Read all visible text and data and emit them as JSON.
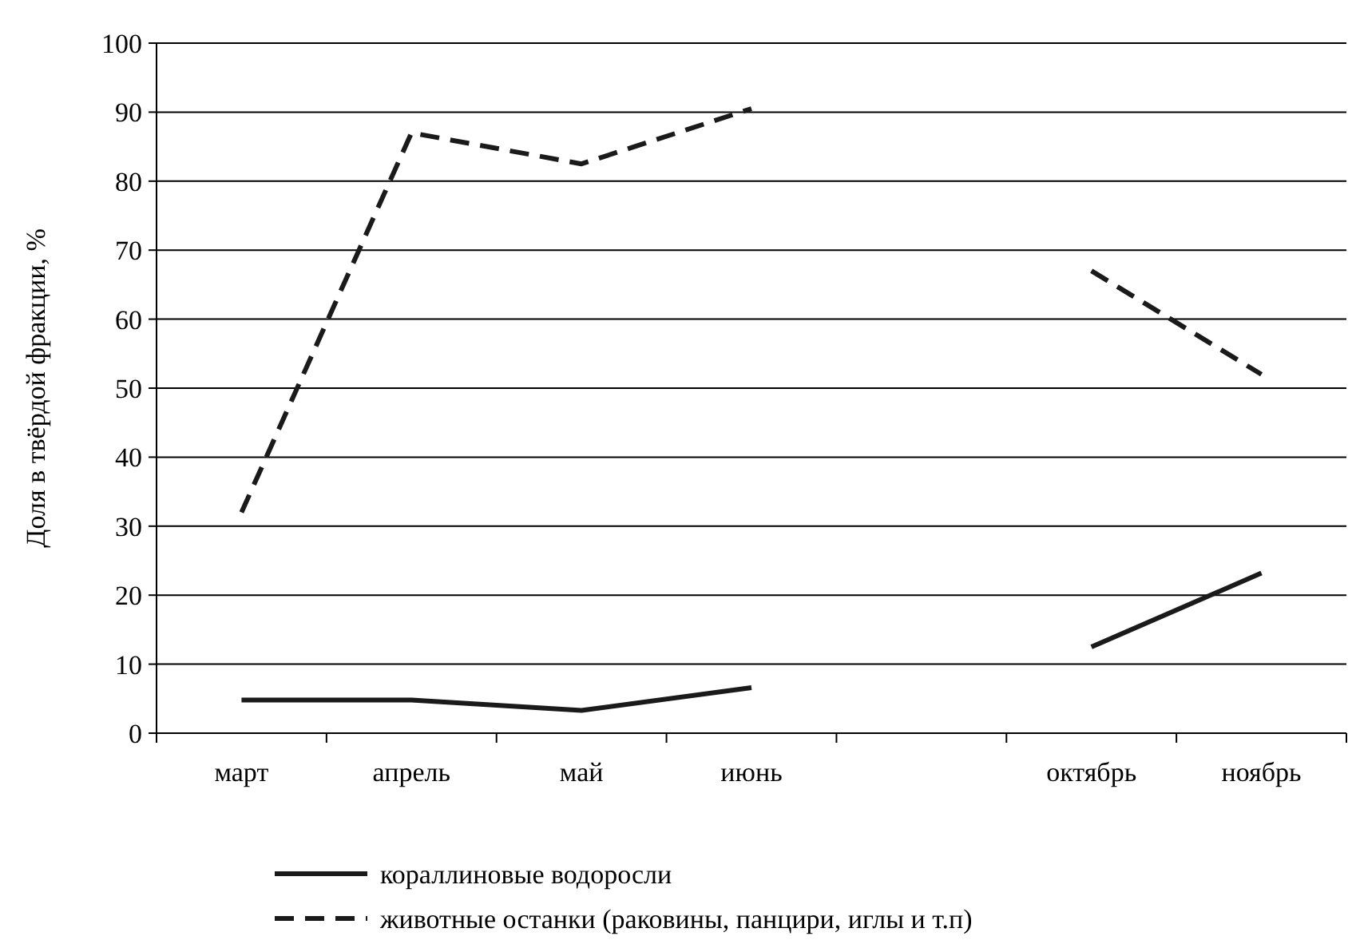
{
  "chart_data": {
    "type": "line",
    "ylabel": "Доля в твёрдой фракции, %",
    "categories": [
      "март",
      "апрель",
      "май",
      "июнь",
      null,
      "октябрь",
      "ноябрь"
    ],
    "series": [
      {
        "name": "кораллиновые водоросли",
        "color": "#1a1a1a",
        "line_style": "solid",
        "values": [
          4.8,
          4.8,
          3.3,
          6.6,
          null,
          12.5,
          23.2
        ]
      },
      {
        "name": "животные останки (раковины, панцири, иглы и т.п)",
        "color": "#1a1a1a",
        "line_style": "dashed",
        "values": [
          32,
          87,
          82.5,
          90.5,
          null,
          67,
          52
        ]
      }
    ],
    "ylim": [
      0,
      100
    ],
    "yticks": [
      0,
      10,
      20,
      30,
      40,
      50,
      60,
      70,
      80,
      90,
      100
    ],
    "grid": "y",
    "legend": "bottom"
  }
}
